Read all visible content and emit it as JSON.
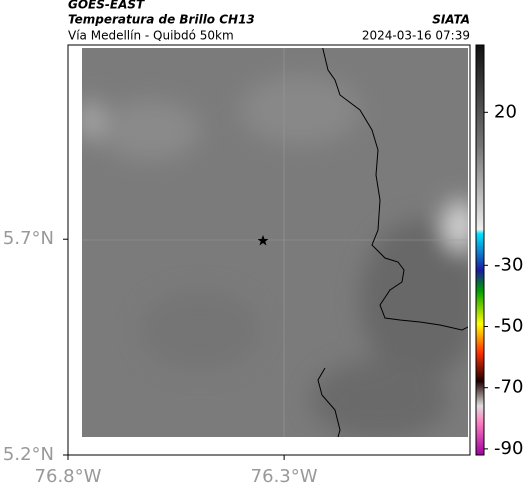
{
  "header": {
    "satellite": "GOES-EAST",
    "product": "Temperatura de Brillo CH13",
    "source": "SIATA",
    "route": "Vía Medellín - Quibdó 50km",
    "timestamp": "2024-03-16 07:39"
  },
  "map": {
    "latlim": [
      5.2,
      6.15
    ],
    "lonlim": [
      -76.8,
      -75.87
    ],
    "latticks": [
      {
        "value": 5.7,
        "label": "5.7°N"
      },
      {
        "value": 5.2,
        "label": "5.2°N"
      }
    ],
    "lonticks": [
      {
        "value": -76.8,
        "label": "76.8°W"
      },
      {
        "value": -76.3,
        "label": "76.3°W"
      }
    ]
  },
  "colorbar": {
    "lim": [
      -92,
      42
    ],
    "ticks": [
      20,
      -30,
      -50,
      -70,
      -90
    ]
  }
}
